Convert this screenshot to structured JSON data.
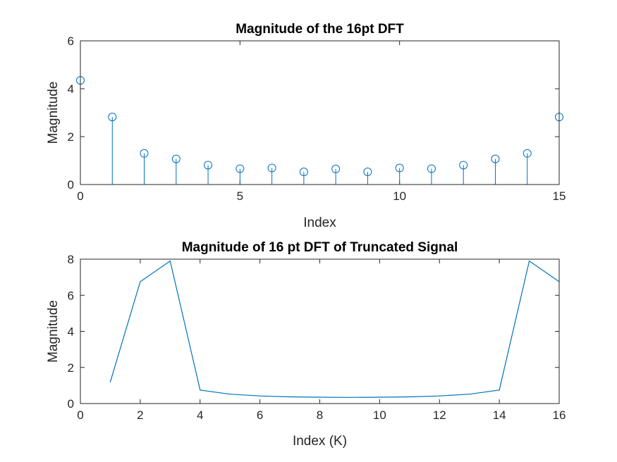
{
  "figure": {
    "background": "#ffffff",
    "series_color": "#0072bd",
    "axis_color": "#262626"
  },
  "chart_data": [
    {
      "type": "stem",
      "title": "Magnitude of the 16pt DFT",
      "xlabel": "Index",
      "ylabel": "Magnitude",
      "xlim": [
        0,
        15
      ],
      "ylim": [
        0,
        6
      ],
      "xticks": [
        0,
        5,
        10,
        15
      ],
      "yticks": [
        0,
        2,
        4,
        6
      ],
      "grid": false,
      "box": true,
      "marker": "circle",
      "series": [
        {
          "x": [
            0,
            1,
            2,
            3,
            4,
            5,
            6,
            7,
            8,
            9,
            10,
            11,
            12,
            13,
            14,
            15
          ],
          "values": [
            4.35,
            2.82,
            1.3,
            1.07,
            0.81,
            0.66,
            0.69,
            0.53,
            0.65,
            0.53,
            0.69,
            0.66,
            0.81,
            1.07,
            1.3,
            2.82
          ]
        }
      ]
    },
    {
      "type": "line",
      "title": "Magnitude of 16 pt DFT of Truncated Signal",
      "xlabel": "Index (K)",
      "ylabel": "Magnitude",
      "xlim": [
        0,
        16
      ],
      "ylim": [
        0,
        8
      ],
      "xticks": [
        0,
        2,
        4,
        6,
        8,
        10,
        12,
        14,
        16
      ],
      "yticks": [
        0,
        2,
        4,
        6,
        8
      ],
      "grid": false,
      "box": true,
      "series": [
        {
          "x": [
            1,
            2,
            3,
            4,
            5,
            6,
            7,
            8,
            9,
            10,
            11,
            12,
            13,
            14,
            15,
            16
          ],
          "values": [
            1.2,
            6.75,
            7.9,
            0.75,
            0.52,
            0.42,
            0.37,
            0.35,
            0.34,
            0.35,
            0.37,
            0.42,
            0.52,
            0.75,
            7.9,
            6.75
          ]
        }
      ]
    }
  ]
}
